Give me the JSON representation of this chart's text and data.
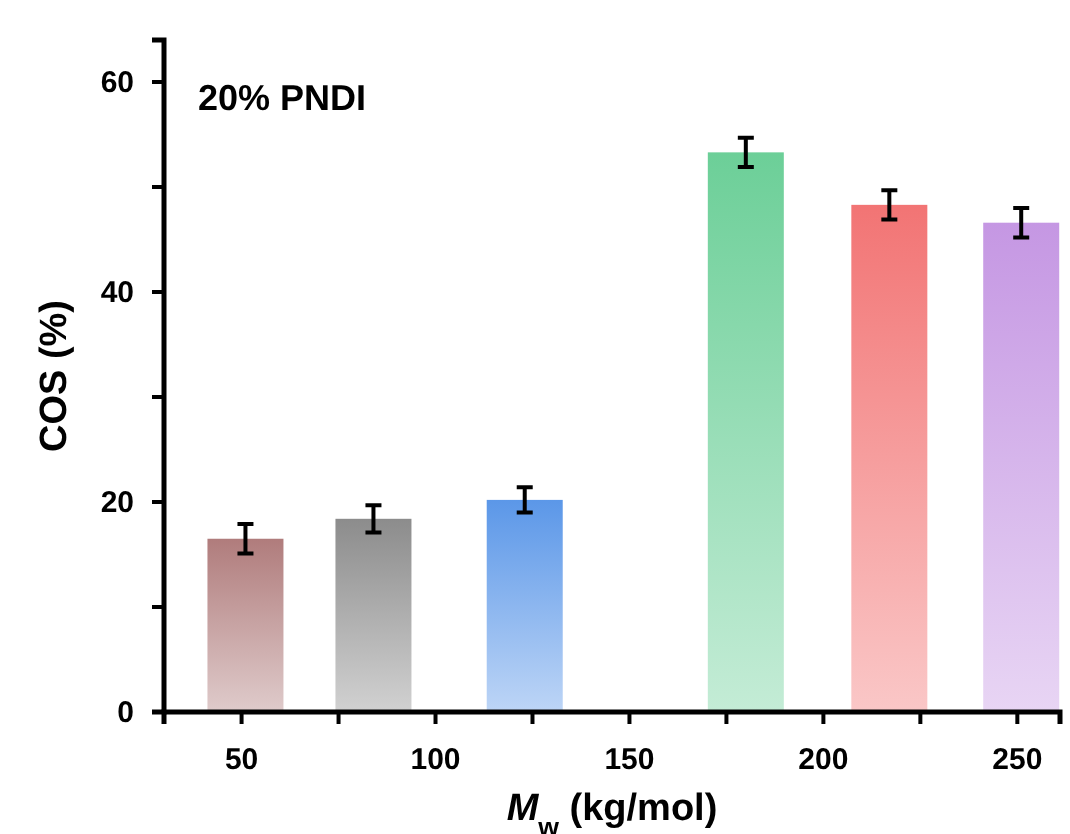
{
  "chart_data": {
    "type": "bar",
    "x": [
      51,
      84,
      123,
      180,
      217,
      251
    ],
    "values": [
      16.5,
      18.4,
      20.2,
      53.3,
      48.3,
      46.6
    ],
    "errors": [
      1.4,
      1.3,
      1.2,
      1.4,
      1.4,
      1.4
    ],
    "colors": [
      "#b07c7c",
      "#8c8c8c",
      "#5b97e8",
      "#6ccf98",
      "#f27474",
      "#c597e3"
    ],
    "xlabel": "M$_{w}$  (kg/mol)",
    "ylabel": "COS (%)",
    "annotations": [
      "20% PNDI"
    ],
    "xlim": [
      30,
      261
    ],
    "ylim": [
      0,
      64
    ],
    "xticks": [
      50,
      {
        "value": 75,
        "label": null
      },
      100,
      {
        "value": 125,
        "label": null
      },
      150,
      {
        "value": 175,
        "label": null
      },
      200,
      {
        "value": 225,
        "label": null
      },
      250
    ],
    "yticks": [
      0,
      {
        "value": 10,
        "label": null
      },
      20,
      {
        "value": 30,
        "label": null
      },
      40,
      {
        "value": 50,
        "label": null
      },
      60
    ],
    "grid": false
  }
}
